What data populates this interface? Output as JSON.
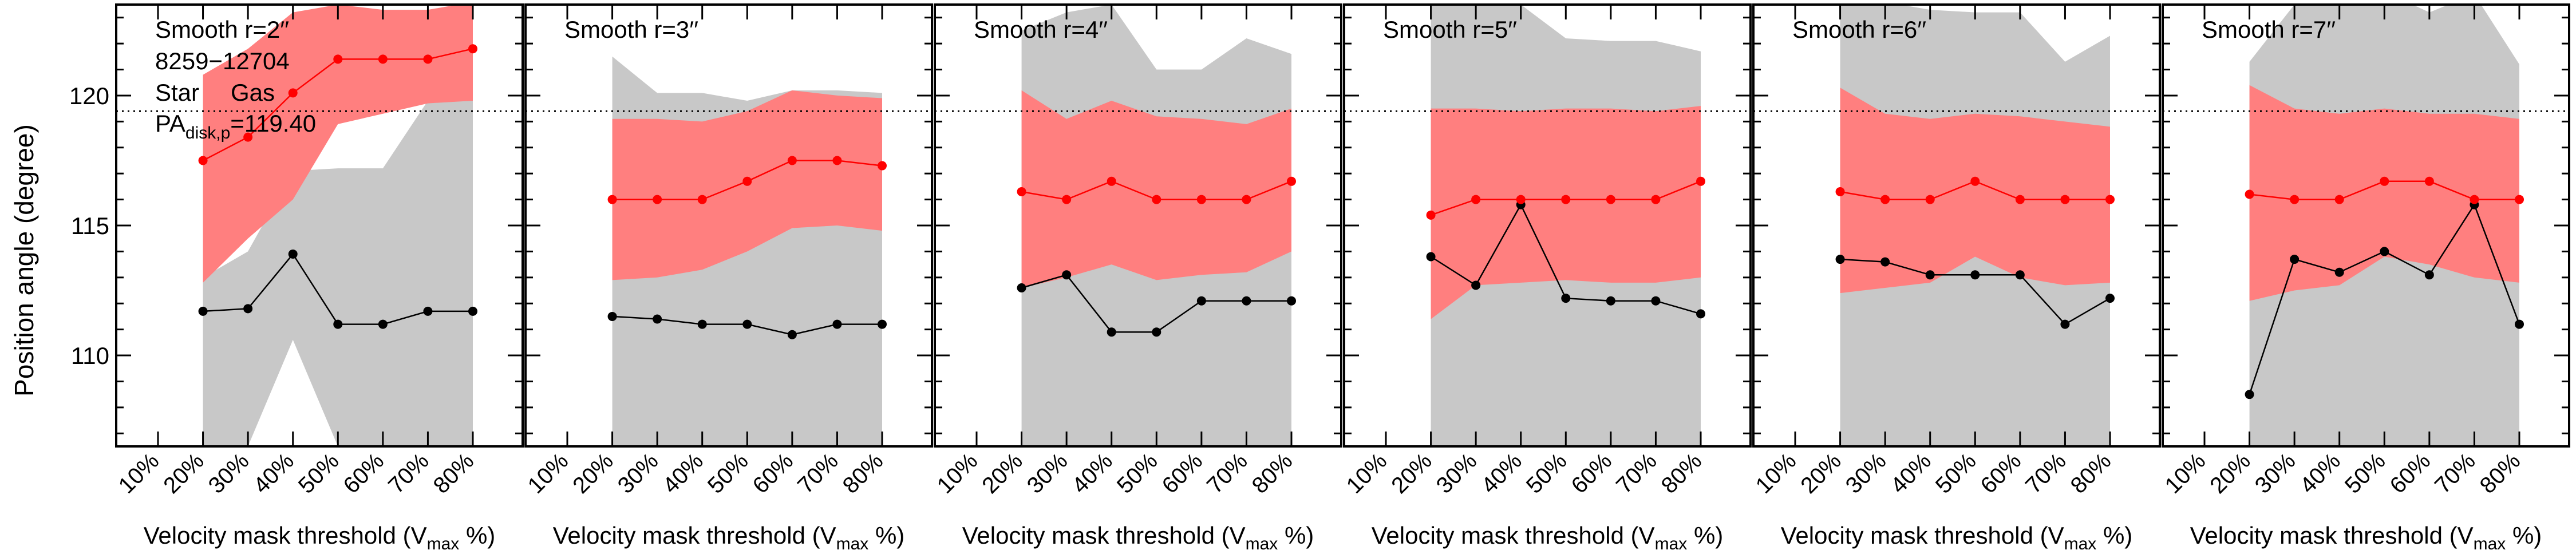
{
  "page": {
    "bg": "#ffffff"
  },
  "colors": {
    "star": "#000000",
    "gas": "#ff0000",
    "gas_band": "#ff7f7f",
    "star_band": "#c8c8c8",
    "pa_line": "#000000"
  },
  "figure": {
    "ylabel": "Position angle (degree)",
    "xlabel_main": "Velocity mask threshold (V",
    "xlabel_sub": "max",
    "xlabel_end": " %)",
    "galaxy_id": "8259−12704",
    "legend_star": "Star",
    "legend_gas": "Gas",
    "pa_main": "PA",
    "pa_sub": "disk,p",
    "pa_value": "=119.40"
  },
  "chart_data": [
    {
      "type": "line",
      "title": "Smooth r=2′′",
      "categories": [
        "10%",
        "20%",
        "30%",
        "40%",
        "50%",
        "60%",
        "70%",
        "80%"
      ],
      "ylim": [
        106.5,
        123.5
      ],
      "yticks": [
        110,
        115,
        120
      ],
      "pa_ref": 119.4,
      "gas": {
        "name": "Gas",
        "x": [
          20,
          30,
          40,
          50,
          60,
          70,
          80
        ],
        "values": [
          117.5,
          118.4,
          120.1,
          121.4,
          121.4,
          121.4,
          121.8
        ]
      },
      "star": {
        "name": "Star",
        "x": [
          20,
          30,
          40,
          50,
          60,
          70,
          80
        ],
        "values": [
          111.7,
          111.8,
          113.9,
          111.2,
          111.2,
          111.7,
          111.7
        ]
      },
      "gas_band": {
        "x": [
          20,
          30,
          40,
          50,
          60,
          70,
          80
        ],
        "low": [
          112.8,
          114.5,
          116.0,
          118.9,
          119.3,
          119.7,
          119.8
        ],
        "high": [
          120.8,
          121.8,
          123.2,
          123.5,
          123.3,
          123.3,
          123.6
        ]
      },
      "star_band": {
        "x": [
          20,
          30,
          40,
          50,
          60,
          70,
          80
        ],
        "low": [
          106.5,
          106.5,
          110.6,
          106.5,
          106.5,
          106.5,
          106.5
        ],
        "high": [
          113.0,
          114.0,
          117.1,
          117.2,
          117.2,
          119.8,
          120.0
        ]
      }
    },
    {
      "type": "line",
      "title": "Smooth r=3′′",
      "categories": [
        "10%",
        "20%",
        "30%",
        "40%",
        "50%",
        "60%",
        "70%",
        "80%"
      ],
      "ylim": [
        106.5,
        123.5
      ],
      "yticks": [
        110,
        115,
        120
      ],
      "pa_ref": 119.4,
      "gas": {
        "name": "Gas",
        "x": [
          20,
          30,
          40,
          50,
          60,
          70,
          80
        ],
        "values": [
          116.0,
          116.0,
          116.0,
          116.7,
          117.5,
          117.5,
          117.3
        ]
      },
      "star": {
        "name": "Star",
        "x": [
          20,
          30,
          40,
          50,
          60,
          70,
          80
        ],
        "values": [
          111.5,
          111.4,
          111.2,
          111.2,
          110.8,
          111.2,
          111.2
        ]
      },
      "gas_band": {
        "x": [
          20,
          30,
          40,
          50,
          60,
          70,
          80
        ],
        "low": [
          112.9,
          113.0,
          113.3,
          114.0,
          114.9,
          115.0,
          114.8
        ],
        "high": [
          119.1,
          119.1,
          119.0,
          119.4,
          120.2,
          120.0,
          119.9
        ]
      },
      "star_band": {
        "x": [
          20,
          30,
          40,
          50,
          60,
          70,
          80
        ],
        "low": [
          106.5,
          106.5,
          106.5,
          106.5,
          106.5,
          106.5,
          106.5
        ],
        "high": [
          121.5,
          120.1,
          120.1,
          119.8,
          120.2,
          120.2,
          120.1
        ]
      }
    },
    {
      "type": "line",
      "title": "Smooth r=4′′",
      "categories": [
        "10%",
        "20%",
        "30%",
        "40%",
        "50%",
        "60%",
        "70%",
        "80%"
      ],
      "ylim": [
        106.5,
        123.5
      ],
      "yticks": [
        110,
        115,
        120
      ],
      "pa_ref": 119.4,
      "gas": {
        "name": "Gas",
        "x": [
          20,
          30,
          40,
          50,
          60,
          70,
          80
        ],
        "values": [
          116.3,
          116.0,
          116.7,
          116.0,
          116.0,
          116.0,
          116.7
        ]
      },
      "star": {
        "name": "Star",
        "x": [
          20,
          30,
          40,
          50,
          60,
          70,
          80
        ],
        "values": [
          112.6,
          113.1,
          110.9,
          110.9,
          112.1,
          112.1,
          112.1
        ]
      },
      "gas_band": {
        "x": [
          20,
          30,
          40,
          50,
          60,
          70,
          80
        ],
        "low": [
          112.6,
          113.0,
          113.5,
          112.9,
          113.1,
          113.2,
          114.0
        ],
        "high": [
          120.2,
          119.1,
          119.8,
          119.2,
          119.1,
          118.9,
          119.5
        ]
      },
      "star_band": {
        "x": [
          20,
          30,
          40,
          50,
          60,
          70,
          80
        ],
        "low": [
          106.5,
          106.5,
          106.5,
          106.5,
          106.5,
          106.5,
          106.5
        ],
        "high": [
          122.5,
          123.2,
          123.5,
          121.0,
          121.0,
          122.2,
          121.6
        ]
      }
    },
    {
      "type": "line",
      "title": "Smooth r=5′′",
      "categories": [
        "10%",
        "20%",
        "30%",
        "40%",
        "50%",
        "60%",
        "70%",
        "80%"
      ],
      "ylim": [
        106.5,
        123.5
      ],
      "yticks": [
        110,
        115,
        120
      ],
      "pa_ref": 119.4,
      "gas": {
        "name": "Gas",
        "x": [
          20,
          30,
          40,
          50,
          60,
          70,
          80
        ],
        "values": [
          115.4,
          116.0,
          116.0,
          116.0,
          116.0,
          116.0,
          116.7
        ]
      },
      "star": {
        "name": "Star",
        "x": [
          20,
          30,
          40,
          50,
          60,
          70,
          80
        ],
        "values": [
          113.8,
          112.7,
          115.8,
          112.2,
          112.1,
          112.1,
          111.6
        ]
      },
      "gas_band": {
        "x": [
          20,
          30,
          40,
          50,
          60,
          70,
          80
        ],
        "low": [
          111.4,
          112.7,
          112.8,
          112.9,
          112.8,
          112.8,
          113.0
        ],
        "high": [
          119.5,
          119.5,
          119.4,
          119.5,
          119.5,
          119.4,
          119.6
        ]
      },
      "star_band": {
        "x": [
          20,
          30,
          40,
          50,
          60,
          70,
          80
        ],
        "low": [
          106.5,
          106.5,
          106.5,
          106.5,
          106.5,
          106.5,
          106.5
        ],
        "high": [
          123.9,
          123.5,
          123.5,
          122.2,
          122.1,
          122.1,
          121.7
        ]
      }
    },
    {
      "type": "line",
      "title": "Smooth r=6′′",
      "categories": [
        "10%",
        "20%",
        "30%",
        "40%",
        "50%",
        "60%",
        "70%",
        "80%"
      ],
      "ylim": [
        106.5,
        123.5
      ],
      "yticks": [
        110,
        115,
        120
      ],
      "pa_ref": 119.4,
      "gas": {
        "name": "Gas",
        "x": [
          20,
          30,
          40,
          50,
          60,
          70,
          80
        ],
        "values": [
          116.3,
          116.0,
          116.0,
          116.7,
          116.0,
          116.0,
          116.0
        ]
      },
      "star": {
        "name": "Star",
        "x": [
          20,
          30,
          40,
          50,
          60,
          70,
          80
        ],
        "values": [
          113.7,
          113.6,
          113.1,
          113.1,
          113.1,
          111.2,
          112.2
        ]
      },
      "gas_band": {
        "x": [
          20,
          30,
          40,
          50,
          60,
          70,
          80
        ],
        "low": [
          112.4,
          112.6,
          112.8,
          113.8,
          113.0,
          112.7,
          112.8
        ],
        "high": [
          120.3,
          119.3,
          119.1,
          119.3,
          119.2,
          119.0,
          118.8
        ]
      },
      "star_band": {
        "x": [
          20,
          30,
          40,
          50,
          60,
          70,
          80
        ],
        "low": [
          106.5,
          106.5,
          106.5,
          106.5,
          106.5,
          106.5,
          106.5
        ],
        "high": [
          123.9,
          123.6,
          123.3,
          123.2,
          123.2,
          121.3,
          122.3
        ]
      }
    },
    {
      "type": "line",
      "title": "Smooth r=7′′",
      "categories": [
        "10%",
        "20%",
        "30%",
        "40%",
        "50%",
        "60%",
        "70%",
        "80%"
      ],
      "ylim": [
        106.5,
        123.5
      ],
      "yticks": [
        110,
        115,
        120
      ],
      "pa_ref": 119.4,
      "gas": {
        "name": "Gas",
        "x": [
          20,
          30,
          40,
          50,
          60,
          70,
          80
        ],
        "values": [
          116.2,
          116.0,
          116.0,
          116.7,
          116.7,
          116.0,
          116.0
        ]
      },
      "star": {
        "name": "Star",
        "x": [
          20,
          30,
          40,
          50,
          60,
          70,
          80
        ],
        "values": [
          108.5,
          113.7,
          113.2,
          114.0,
          113.1,
          115.8,
          111.2
        ]
      },
      "gas_band": {
        "x": [
          20,
          30,
          40,
          50,
          60,
          70,
          80
        ],
        "low": [
          112.1,
          112.5,
          112.7,
          113.8,
          113.5,
          113.0,
          112.8
        ],
        "high": [
          120.4,
          119.5,
          119.3,
          119.5,
          119.3,
          119.3,
          119.1
        ]
      },
      "star_band": {
        "x": [
          20,
          30,
          40,
          50,
          60,
          70,
          80
        ],
        "low": [
          106.5,
          106.5,
          106.5,
          106.5,
          106.5,
          106.5,
          106.5
        ],
        "high": [
          121.3,
          123.5,
          123.8,
          124.0,
          123.2,
          123.9,
          121.2
        ]
      }
    }
  ]
}
